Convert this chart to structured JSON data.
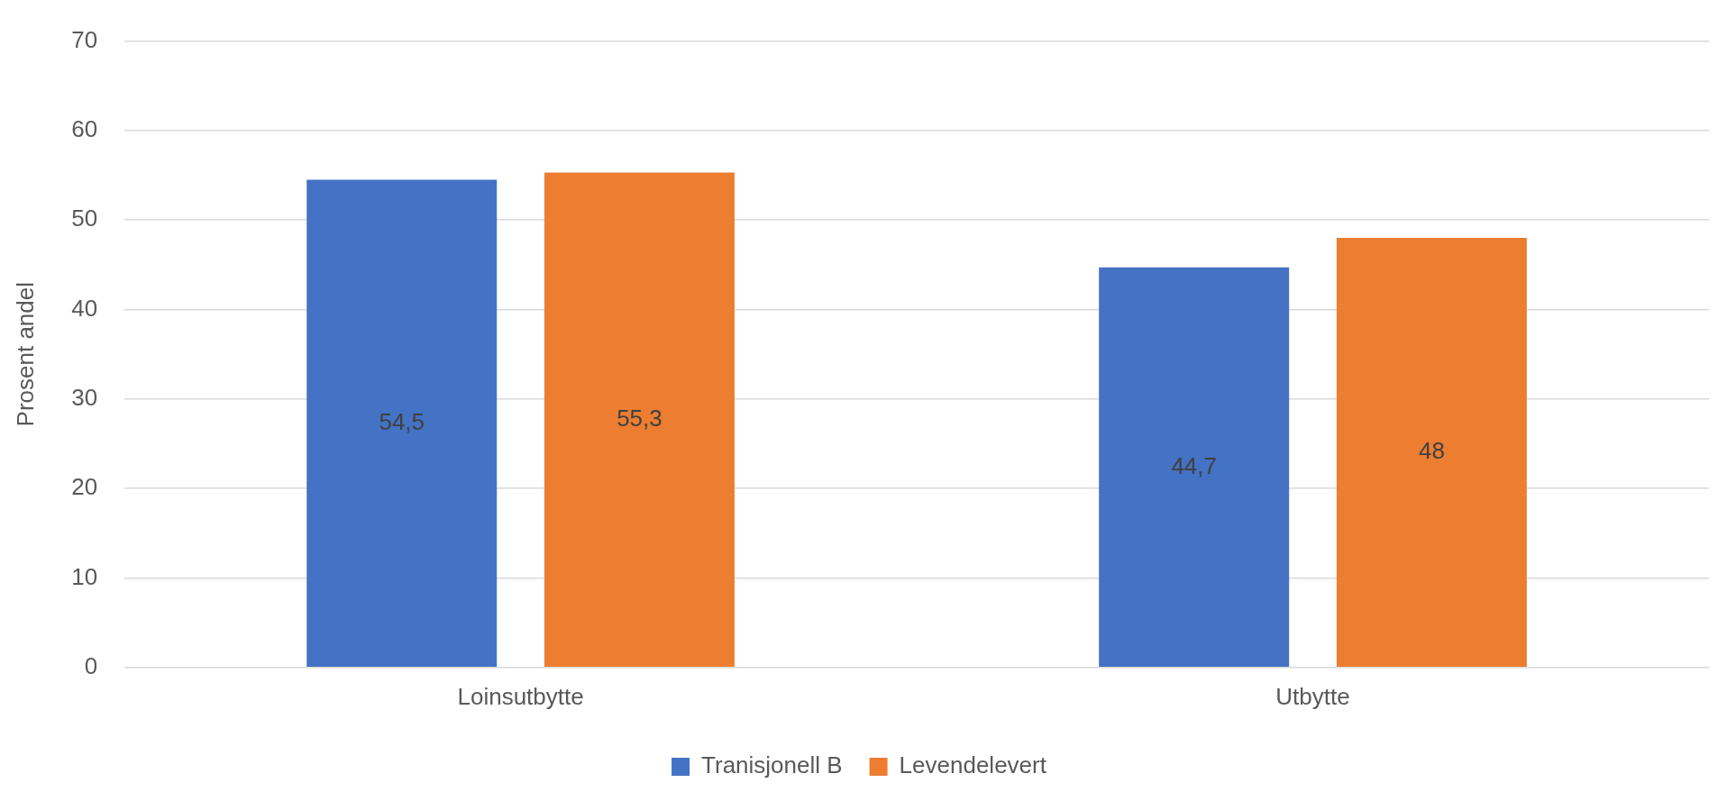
{
  "chart_data": {
    "type": "bar",
    "ylabel": "Prosent andel",
    "categories": [
      "Loinsutbytte",
      "Utbytte"
    ],
    "series": [
      {
        "name": "Tranisjonell B",
        "color": "#4472c4",
        "values": [
          54.5,
          44.7
        ],
        "value_labels": [
          "54,5",
          "44,7"
        ]
      },
      {
        "name": "Levendelevert",
        "color": "#ed7d31",
        "values": [
          55.3,
          48
        ],
        "value_labels": [
          "55,3",
          "48"
        ]
      }
    ],
    "ylim": [
      0,
      70
    ],
    "yticks": [
      0,
      10,
      20,
      30,
      40,
      50,
      60,
      70
    ],
    "grid": "y",
    "legend": "bottom"
  }
}
